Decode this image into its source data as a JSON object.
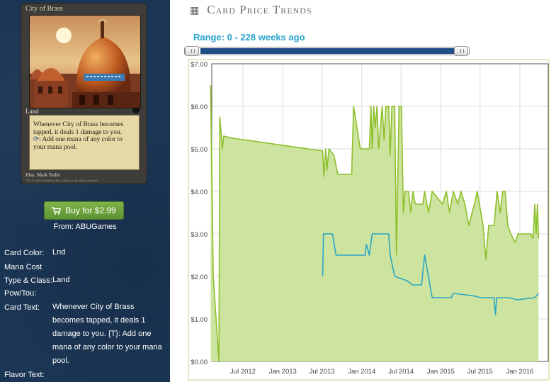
{
  "card": {
    "name": "City of Brass",
    "type_line": "Land",
    "rules_text_1": "Whenever City of Brass becomes tapped, it deals 1 damage to you.",
    "tap_symbol": "⟳",
    "rules_text_2": ": Add one mana of any color to your mana pool.",
    "illustrator": "Illus. Mark Tedin",
    "copyright": "™ & © 1995 Wizards of the Coast, Inc. All rights reserved."
  },
  "buy": {
    "label": "Buy for $2.99",
    "icon": "cart-icon",
    "from": "From: ABUGames"
  },
  "details": [
    {
      "label": "Card Color:",
      "value": "Lnd"
    },
    {
      "label": "Mana Cost",
      "value": ""
    },
    {
      "label": "Type & Class:",
      "value": "Land"
    },
    {
      "label": "Pow/Tou:",
      "value": ""
    },
    {
      "label": "Card Text:",
      "value": "Whenever City of Brass becomes tapped, it deals 1 damage to you. {T}: Add one mana of any color to your mana pool."
    },
    {
      "label": "Flavor Text:",
      "value": ""
    }
  ],
  "header": {
    "title": "Card Price Trends",
    "icon": "calendar-icon"
  },
  "range": {
    "label": "Range: 0 - 228 weeks ago",
    "start_weeks": 0,
    "end_weeks": 228
  },
  "colors": {
    "sidebar_bg": "#1b3554",
    "high_price_line": "#8dbf2a",
    "high_price_fill": "#cde4a0",
    "low_price_line": "#2aa6c5",
    "range_text": "#29a3cf"
  },
  "chart_data": {
    "type": "area",
    "title": "",
    "xlabel": "",
    "ylabel": "",
    "ylim": [
      0,
      7
    ],
    "yticks": [
      "$0.00",
      "$1.00",
      "$2.00",
      "$3.00",
      "$4.00",
      "$5.00",
      "$6.00",
      "$7.00"
    ],
    "xticks": [
      "Jul 2012",
      "Jan 2013",
      "Jul 2013",
      "Jan 2014",
      "Jul 2014",
      "Jan 2015",
      "Jul 2015",
      "Jan 2016"
    ],
    "grid": true,
    "series": [
      {
        "color": "#8dbf2a",
        "fill": "#cde4a0",
        "points": [
          [
            "2012-02-03",
            6.5
          ],
          [
            "2012-02-15",
            2.0
          ],
          [
            "2012-03-12",
            0.0
          ],
          [
            "2012-03-16",
            5.75
          ],
          [
            "2012-03-28",
            5.0
          ],
          [
            "2012-04-03",
            5.3
          ],
          [
            "2012-05-15",
            5.25
          ],
          [
            "2013-07-04",
            4.95
          ],
          [
            "2013-07-10",
            4.35
          ],
          [
            "2013-07-18",
            5.0
          ],
          [
            "2013-07-24",
            4.5
          ],
          [
            "2013-08-02",
            5.0
          ],
          [
            "2013-08-25",
            4.85
          ],
          [
            "2013-09-12",
            4.4
          ],
          [
            "2013-11-15",
            4.4
          ],
          [
            "2013-11-24",
            6.0
          ],
          [
            "2013-12-25",
            5.0
          ],
          [
            "2014-02-05",
            5.0
          ],
          [
            "2014-02-12",
            6.0
          ],
          [
            "2014-02-18",
            5.0
          ],
          [
            "2014-02-25",
            6.0
          ],
          [
            "2014-03-04",
            5.5
          ],
          [
            "2014-03-12",
            6.0
          ],
          [
            "2014-03-20",
            5.0
          ],
          [
            "2014-04-05",
            6.0
          ],
          [
            "2014-04-14",
            5.2
          ],
          [
            "2014-04-22",
            6.0
          ],
          [
            "2014-05-05",
            6.0
          ],
          [
            "2014-05-12",
            4.85
          ],
          [
            "2014-05-20",
            6.0
          ],
          [
            "2014-06-02",
            6.0
          ],
          [
            "2014-06-10",
            2.5
          ],
          [
            "2014-06-22",
            6.0
          ],
          [
            "2014-07-03",
            6.0
          ],
          [
            "2014-07-12",
            3.5
          ],
          [
            "2014-07-20",
            4.0
          ],
          [
            "2014-08-05",
            4.0
          ],
          [
            "2014-08-15",
            3.5
          ],
          [
            "2014-08-25",
            4.0
          ],
          [
            "2014-09-05",
            3.7
          ],
          [
            "2014-10-10",
            3.7
          ],
          [
            "2014-10-18",
            4.0
          ],
          [
            "2014-11-05",
            3.5
          ],
          [
            "2014-11-22",
            4.0
          ],
          [
            "2015-01-08",
            3.7
          ],
          [
            "2015-01-26",
            4.0
          ],
          [
            "2015-02-10",
            3.5
          ],
          [
            "2015-02-28",
            4.0
          ],
          [
            "2015-03-20",
            3.7
          ],
          [
            "2015-04-04",
            4.0
          ],
          [
            "2015-04-22",
            3.7
          ],
          [
            "2015-05-10",
            3.2
          ],
          [
            "2015-06-05",
            3.7
          ],
          [
            "2015-06-18",
            4.0
          ],
          [
            "2015-07-15",
            3.2
          ],
          [
            "2015-07-28",
            2.4
          ],
          [
            "2015-08-10",
            3.2
          ],
          [
            "2015-09-04",
            3.2
          ],
          [
            "2015-09-18",
            4.0
          ],
          [
            "2015-10-02",
            3.5
          ],
          [
            "2015-10-14",
            4.0
          ],
          [
            "2015-10-25",
            4.0
          ],
          [
            "2015-11-06",
            3.2
          ],
          [
            "2015-11-20",
            3.0
          ],
          [
            "2015-12-10",
            2.8
          ],
          [
            "2015-12-24",
            3.0
          ],
          [
            "2016-02-20",
            3.0
          ],
          [
            "2016-03-02",
            2.9
          ],
          [
            "2016-03-10",
            3.7
          ],
          [
            "2016-03-16",
            3.0
          ],
          [
            "2016-03-22",
            3.7
          ],
          [
            "2016-03-27",
            2.9
          ]
        ]
      },
      {
        "color": "#2aa6c5",
        "points": [
          [
            "2013-07-04",
            2.0
          ],
          [
            "2013-07-08",
            3.0
          ],
          [
            "2013-08-18",
            3.0
          ],
          [
            "2013-09-04",
            2.5
          ],
          [
            "2014-01-16",
            2.5
          ],
          [
            "2014-01-22",
            2.75
          ],
          [
            "2014-02-05",
            2.5
          ],
          [
            "2014-02-18",
            3.0
          ],
          [
            "2014-05-05",
            3.0
          ],
          [
            "2014-05-12",
            2.5
          ],
          [
            "2014-06-02",
            2.0
          ],
          [
            "2014-07-28",
            1.9
          ],
          [
            "2014-08-24",
            1.8
          ],
          [
            "2014-10-04",
            1.8
          ],
          [
            "2014-10-18",
            2.5
          ],
          [
            "2014-11-22",
            1.5
          ],
          [
            "2015-02-18",
            1.5
          ],
          [
            "2015-02-28",
            1.6
          ],
          [
            "2015-05-25",
            1.55
          ],
          [
            "2015-07-05",
            1.5
          ],
          [
            "2015-09-04",
            1.5
          ],
          [
            "2015-09-10",
            1.1
          ],
          [
            "2015-09-16",
            1.5
          ],
          [
            "2015-11-10",
            1.5
          ],
          [
            "2015-12-20",
            1.45
          ],
          [
            "2016-03-10",
            1.5
          ],
          [
            "2016-03-27",
            1.6
          ]
        ]
      }
    ]
  }
}
